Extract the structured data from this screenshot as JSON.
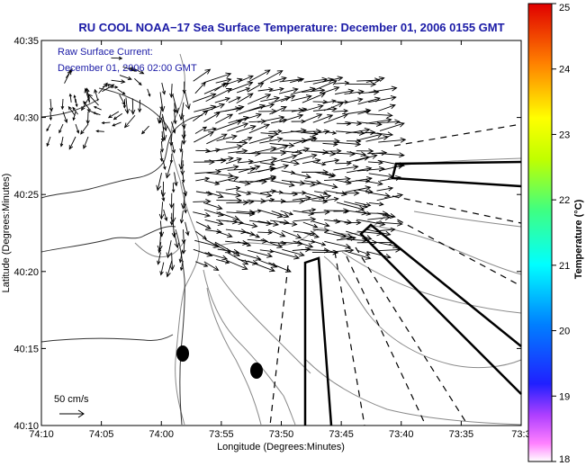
{
  "title": "RU COOL  NOAA−17  Sea Surface Temperature:  December 01, 2006 0155 GMT",
  "current_note": {
    "line1": "Raw Surface Current:",
    "line2": "December 01, 2006 02:00 GMT"
  },
  "axes": {
    "xlabel": "Longitude (Degrees:Minutes)",
    "ylabel": "Latitude (Degrees:Minutes)",
    "xticks": [
      "74:10",
      "74:05",
      "74:00",
      "73:55",
      "73:50",
      "73:45",
      "73:40",
      "73:35",
      "73:3"
    ],
    "yticks": [
      "40:35",
      "40:30",
      "40:25",
      "40:20",
      "40:15",
      "40:10"
    ]
  },
  "colorbar": {
    "label": "Temperature (°C)",
    "ticks": [
      "25",
      "24",
      "23",
      "22",
      "21",
      "20",
      "19",
      "18"
    ],
    "min": 18,
    "max": 25
  },
  "scale_arrow": {
    "label": "50 cm/s"
  },
  "colors": {
    "title": "#1a1aa6",
    "frame": "#000000",
    "coast": "#333333",
    "contour": "#888888"
  }
}
